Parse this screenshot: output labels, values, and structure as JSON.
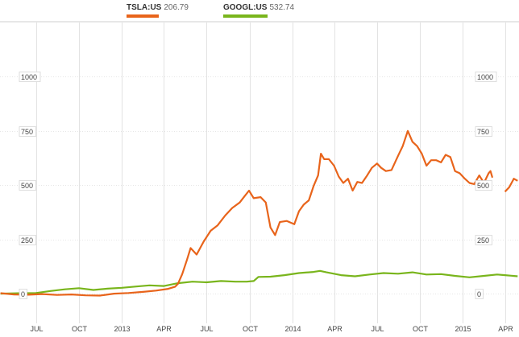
{
  "legend": [
    {
      "ticker": "TSLA:US",
      "price": "206.79",
      "color": "#e8641b"
    },
    {
      "ticker": "GOOGL:US",
      "price": "532.74",
      "color": "#79b51c"
    }
  ],
  "chart_data": {
    "type": "line",
    "xlim": [
      "2012-04-15",
      "2015-05-01"
    ],
    "ylim": [
      -200,
      1250
    ],
    "grid": true,
    "legend_position": "top-left",
    "y_ticks": [
      {
        "value": 1000,
        "label": "1000"
      },
      {
        "value": 750,
        "label": "750"
      },
      {
        "value": 500,
        "label": "500"
      },
      {
        "value": 250,
        "label": "250"
      },
      {
        "value": 0,
        "label": "0"
      }
    ],
    "x_ticks": [
      {
        "date": "2012-07-01",
        "label": "JUL"
      },
      {
        "date": "2012-10-01",
        "label": "OCT"
      },
      {
        "date": "2013-01-01",
        "label": "2013"
      },
      {
        "date": "2013-04-01",
        "label": "APR"
      },
      {
        "date": "2013-07-01",
        "label": "JUL"
      },
      {
        "date": "2013-10-01",
        "label": "OCT"
      },
      {
        "date": "2014-01-01",
        "label": "2014"
      },
      {
        "date": "2014-04-01",
        "label": "APR"
      },
      {
        "date": "2014-07-01",
        "label": "JUL"
      },
      {
        "date": "2014-10-01",
        "label": "OCT"
      },
      {
        "date": "2015-01-01",
        "label": "2015"
      },
      {
        "date": "2015-04-01",
        "label": "APR"
      }
    ],
    "series": [
      {
        "name": "TSLA:US",
        "color": "#e8641b",
        "points": [
          [
            "2012-04-16",
            2
          ],
          [
            "2012-05-15",
            -4
          ],
          [
            "2012-06-15",
            -5
          ],
          [
            "2012-07-15",
            -2
          ],
          [
            "2012-08-15",
            -6
          ],
          [
            "2012-09-15",
            -4
          ],
          [
            "2012-10-15",
            -8
          ],
          [
            "2012-11-15",
            -9
          ],
          [
            "2012-12-15",
            0
          ],
          [
            "2013-01-15",
            3
          ],
          [
            "2013-02-15",
            8
          ],
          [
            "2013-03-15",
            14
          ],
          [
            "2013-04-10",
            22
          ],
          [
            "2013-04-25",
            32
          ],
          [
            "2013-05-01",
            45
          ],
          [
            "2013-05-10",
            90
          ],
          [
            "2013-05-20",
            155
          ],
          [
            "2013-05-28",
            210
          ],
          [
            "2013-06-10",
            180
          ],
          [
            "2013-06-25",
            240
          ],
          [
            "2013-07-10",
            290
          ],
          [
            "2013-07-25",
            315
          ],
          [
            "2013-08-10",
            360
          ],
          [
            "2013-08-25",
            395
          ],
          [
            "2013-09-10",
            420
          ],
          [
            "2013-09-20",
            448
          ],
          [
            "2013-09-30",
            475
          ],
          [
            "2013-10-10",
            440
          ],
          [
            "2013-10-25",
            445
          ],
          [
            "2013-11-05",
            420
          ],
          [
            "2013-11-15",
            305
          ],
          [
            "2013-11-25",
            270
          ],
          [
            "2013-12-05",
            330
          ],
          [
            "2013-12-20",
            335
          ],
          [
            "2014-01-05",
            320
          ],
          [
            "2014-01-15",
            380
          ],
          [
            "2014-01-25",
            410
          ],
          [
            "2014-02-05",
            430
          ],
          [
            "2014-02-15",
            495
          ],
          [
            "2014-02-25",
            545
          ],
          [
            "2014-03-03",
            645
          ],
          [
            "2014-03-10",
            620
          ],
          [
            "2014-03-20",
            620
          ],
          [
            "2014-03-31",
            590
          ],
          [
            "2014-04-10",
            540
          ],
          [
            "2014-04-20",
            510
          ],
          [
            "2014-04-30",
            530
          ],
          [
            "2014-05-10",
            475
          ],
          [
            "2014-05-20",
            515
          ],
          [
            "2014-05-30",
            510
          ],
          [
            "2014-06-10",
            545
          ],
          [
            "2014-06-20",
            580
          ],
          [
            "2014-07-01",
            600
          ],
          [
            "2014-07-10",
            580
          ],
          [
            "2014-07-20",
            565
          ],
          [
            "2014-08-01",
            570
          ],
          [
            "2014-08-15",
            635
          ],
          [
            "2014-08-25",
            680
          ],
          [
            "2014-09-05",
            750
          ],
          [
            "2014-09-15",
            700
          ],
          [
            "2014-09-25",
            680
          ],
          [
            "2014-10-05",
            645
          ],
          [
            "2014-10-15",
            590
          ],
          [
            "2014-10-25",
            615
          ],
          [
            "2014-11-05",
            615
          ],
          [
            "2014-11-15",
            605
          ],
          [
            "2014-11-25",
            640
          ],
          [
            "2014-12-05",
            630
          ],
          [
            "2014-12-15",
            565
          ],
          [
            "2014-12-25",
            555
          ],
          [
            "2015-01-05",
            530
          ],
          [
            "2015-01-15",
            510
          ],
          [
            "2015-01-25",
            505
          ],
          [
            "2015-02-05",
            545
          ],
          [
            "2015-02-15",
            510
          ],
          [
            "2015-02-25",
            555
          ],
          [
            "2015-03-01",
            565
          ],
          [
            "2015-03-05",
            535
          ]
        ]
      },
      {
        "name": "TSLA:US",
        "color": "#e8641b",
        "points": [
          [
            "2015-04-01",
            470
          ],
          [
            "2015-04-10",
            490
          ],
          [
            "2015-04-20",
            530
          ],
          [
            "2015-04-28",
            520
          ]
        ]
      },
      {
        "name": "GOOGL:US",
        "color": "#79b51c",
        "points": [
          [
            "2012-04-16",
            0
          ],
          [
            "2012-06-01",
            2
          ],
          [
            "2012-07-01",
            3
          ],
          [
            "2012-08-01",
            12
          ],
          [
            "2012-09-01",
            20
          ],
          [
            "2012-10-01",
            25
          ],
          [
            "2012-11-01",
            17
          ],
          [
            "2012-12-01",
            23
          ],
          [
            "2013-01-01",
            27
          ],
          [
            "2013-02-01",
            33
          ],
          [
            "2013-03-01",
            38
          ],
          [
            "2013-04-01",
            35
          ],
          [
            "2013-05-01",
            48
          ],
          [
            "2013-06-01",
            55
          ],
          [
            "2013-07-01",
            52
          ],
          [
            "2013-08-01",
            58
          ],
          [
            "2013-09-01",
            55
          ],
          [
            "2013-09-25",
            55
          ],
          [
            "2013-10-10",
            58
          ],
          [
            "2013-10-20",
            77
          ],
          [
            "2013-11-15",
            78
          ],
          [
            "2013-12-15",
            85
          ],
          [
            "2014-01-15",
            95
          ],
          [
            "2014-02-15",
            100
          ],
          [
            "2014-03-01",
            105
          ],
          [
            "2014-03-15",
            98
          ],
          [
            "2014-04-15",
            85
          ],
          [
            "2014-05-15",
            80
          ],
          [
            "2014-06-15",
            88
          ],
          [
            "2014-07-15",
            95
          ],
          [
            "2014-08-15",
            92
          ],
          [
            "2014-09-15",
            98
          ],
          [
            "2014-10-15",
            88
          ],
          [
            "2014-11-15",
            90
          ],
          [
            "2014-12-15",
            82
          ],
          [
            "2015-01-15",
            75
          ],
          [
            "2015-02-15",
            82
          ],
          [
            "2015-03-15",
            88
          ],
          [
            "2015-04-01",
            85
          ],
          [
            "2015-04-28",
            80
          ]
        ]
      }
    ]
  }
}
